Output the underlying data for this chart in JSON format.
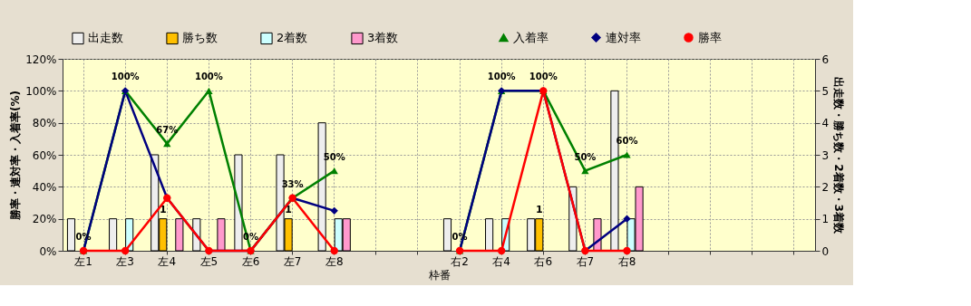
{
  "chart_data": {
    "type": "bar",
    "xlabel": "枠番",
    "ylabel": "勝率・連対率・入着率(%)",
    "y2label": "出走数・勝ち数・2着数・3着数",
    "categories": [
      "左1",
      "左3",
      "左4",
      "左5",
      "左6",
      "左7",
      "左8",
      null,
      null,
      "右2",
      "右4",
      "右6",
      "右7",
      "右8",
      null,
      null,
      null,
      null
    ],
    "series": [
      {
        "name": "出走数",
        "axis": "y2",
        "color": "#eeeeee",
        "values": [
          1,
          1,
          3,
          1,
          3,
          3,
          4,
          null,
          null,
          1,
          1,
          1,
          2,
          5,
          null,
          null,
          null,
          null
        ]
      },
      {
        "name": "勝ち数",
        "axis": "y2",
        "color": "#ffc000",
        "values": [
          0,
          0,
          1,
          0,
          0,
          1,
          0,
          null,
          null,
          0,
          0,
          1,
          0,
          0,
          null,
          null,
          null,
          null
        ],
        "value_labels": [
          null,
          null,
          "1",
          null,
          null,
          "1",
          null,
          null,
          null,
          null,
          null,
          "1",
          null,
          null,
          null,
          null,
          null,
          null
        ]
      },
      {
        "name": "2着数",
        "axis": "y2",
        "color": "#ccffff",
        "values": [
          0,
          1,
          0,
          0,
          0,
          0,
          1,
          null,
          null,
          0,
          1,
          0,
          0,
          1,
          null,
          null,
          null,
          null
        ]
      },
      {
        "name": "3着数",
        "axis": "y2",
        "color": "#ff99cc",
        "values": [
          0,
          0,
          1,
          1,
          0,
          0,
          1,
          null,
          null,
          0,
          0,
          0,
          1,
          2,
          null,
          null,
          null,
          null
        ]
      },
      {
        "name": "入着率",
        "type": "line",
        "color": "#008000",
        "marker": "triangle",
        "values": [
          0,
          100,
          67,
          100,
          0,
          33,
          50,
          null,
          null,
          0,
          100,
          100,
          50,
          60,
          null,
          null,
          null,
          null
        ],
        "value_labels": [
          "0%",
          "100%",
          "67%",
          "100%",
          "0%",
          "33%",
          "50%",
          null,
          null,
          "0%",
          "100%",
          "100%",
          "50%",
          "60%",
          null,
          null,
          null,
          null
        ]
      },
      {
        "name": "連対率",
        "type": "line",
        "color": "#000080",
        "marker": "diamond",
        "values": [
          0,
          100,
          33,
          0,
          0,
          33,
          25,
          null,
          null,
          0,
          100,
          100,
          0,
          20,
          null,
          null,
          null,
          null
        ]
      },
      {
        "name": "勝率",
        "type": "line",
        "color": "#ff0000",
        "marker": "circle",
        "values": [
          0,
          0,
          33,
          0,
          0,
          33,
          0,
          null,
          null,
          0,
          0,
          100,
          0,
          0,
          null,
          null,
          null,
          null
        ]
      }
    ],
    "ylim": [
      0,
      120
    ],
    "yticks": [
      {
        "value": 0,
        "label": "0%"
      },
      {
        "value": 20,
        "label": "20%"
      },
      {
        "value": 40,
        "label": "40%"
      },
      {
        "value": 60,
        "label": "60%"
      },
      {
        "value": 80,
        "label": "80%"
      },
      {
        "value": 100,
        "label": "100%"
      },
      {
        "value": 120,
        "label": "120%"
      }
    ],
    "y2lim": [
      0,
      6
    ],
    "y2ticks": [
      0,
      1,
      2,
      3,
      4,
      5,
      6
    ],
    "grid": true,
    "legend": "top"
  }
}
